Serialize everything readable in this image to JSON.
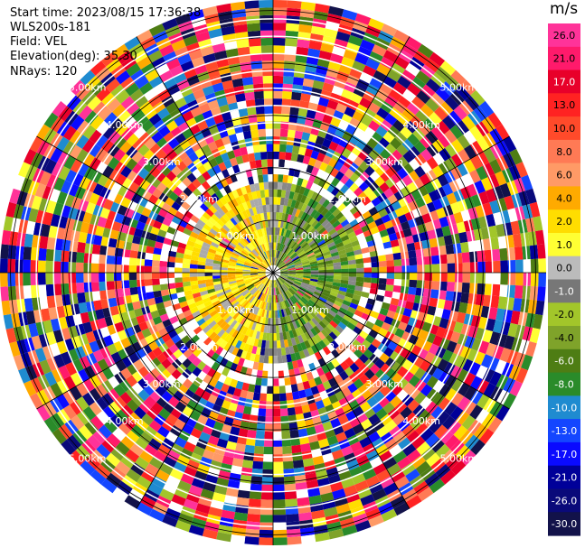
{
  "header": {
    "start_time": "Start time: 2023/08/15 17:36:38",
    "instrument": "WLS200s-181",
    "field": "Field: VEL",
    "elevation": "Elevation(deg): 35.30",
    "nrays": "NRays: 120"
  },
  "chart_data": {
    "type": "heatmap",
    "projection": "polar-ppi",
    "field": "VEL",
    "nrays": 120,
    "range_rings_km": [
      1.0,
      2.0,
      3.0,
      4.0,
      5.0
    ],
    "ring_labels": [
      "1.00km",
      "2.00km",
      "3.00km",
      "4.00km",
      "5.00km"
    ],
    "max_range_km": 5.2,
    "colorbar": {
      "unit": "m/s",
      "ticks": [
        "26.0",
        "21.0",
        "17.0",
        "13.0",
        "10.0",
        "8.0",
        "6.0",
        "4.0",
        "2.0",
        "1.0",
        "0.0",
        "-1.0",
        "-2.0",
        "-4.0",
        "-6.0",
        "-8.0",
        "-10.0",
        "-13.0",
        "-17.0",
        "-21.0",
        "-26.0",
        "-30.0"
      ],
      "colors": [
        "#ff3399",
        "#ff1a6b",
        "#e8002a",
        "#ff2222",
        "#ff4a2a",
        "#ff7a55",
        "#ff9a66",
        "#ffaa00",
        "#ffdd00",
        "#ffff33",
        "#bbbbbb",
        "#777777",
        "#a2c62a",
        "#7fa32a",
        "#4e7d14",
        "#2a8b2a",
        "#1f8bd0",
        "#1446ff",
        "#0a0aff",
        "#000099",
        "#0a0a7a",
        "#12124a"
      ]
    }
  }
}
